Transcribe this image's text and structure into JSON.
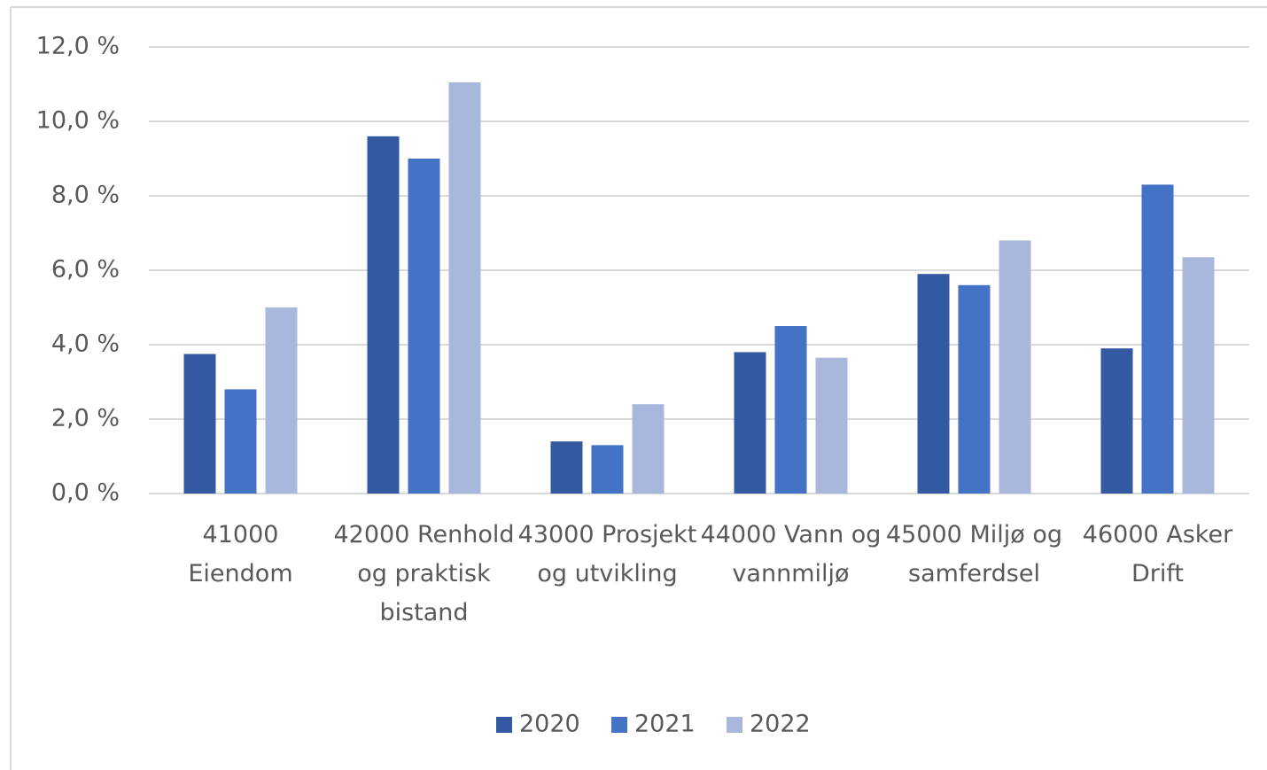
{
  "chart_data": {
    "type": "bar",
    "categories": [
      "41000 Eiendom",
      "42000 Renhold og praktisk bistand",
      "43000 Prosjekt og utvikling",
      "44000 Vann og vannmiljø",
      "45000 Miljø og samferdsel",
      "46000 Asker Drift"
    ],
    "series": [
      {
        "name": "2020",
        "color": "#335aa1",
        "values": [
          3.75,
          9.6,
          1.4,
          3.8,
          5.9,
          3.9
        ]
      },
      {
        "name": "2021",
        "color": "#4472c4",
        "values": [
          2.8,
          9.0,
          1.3,
          4.5,
          5.6,
          8.3
        ]
      },
      {
        "name": "2022",
        "color": "#a9b7dc",
        "values": [
          5.0,
          11.05,
          2.4,
          3.65,
          6.8,
          6.35
        ]
      }
    ],
    "ylim": [
      0,
      12
    ],
    "yticks": [
      {
        "value": 0,
        "label": "0,0 %"
      },
      {
        "value": 2,
        "label": "2,0 %"
      },
      {
        "value": 4,
        "label": "4,0 %"
      },
      {
        "value": 6,
        "label": "6,0 %"
      },
      {
        "value": 8,
        "label": "8,0 %"
      },
      {
        "value": 10,
        "label": "10,0 %"
      },
      {
        "value": 12,
        "label": "12,0 %"
      }
    ],
    "grid": true,
    "legend": "bottom"
  }
}
